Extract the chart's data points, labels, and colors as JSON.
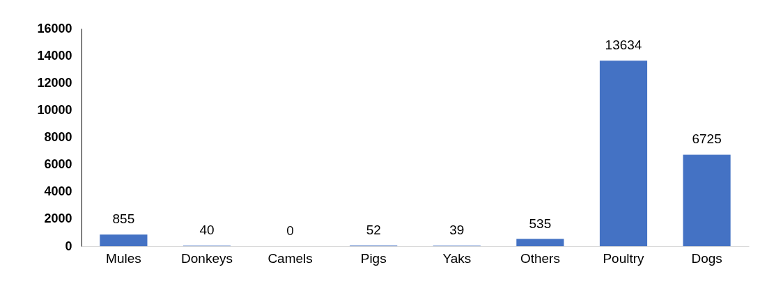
{
  "chart_data": {
    "type": "bar",
    "categories": [
      "Mules",
      "Donkeys",
      "Camels",
      "Pigs",
      "Yaks",
      "Others",
      "Poultry",
      "Dogs"
    ],
    "values": [
      855,
      40,
      0,
      52,
      39,
      535,
      13634,
      6725
    ],
    "color": "#4472c4",
    "ylim": [
      0,
      16000
    ],
    "yticks": [
      0,
      2000,
      4000,
      6000,
      8000,
      10000,
      12000,
      14000,
      16000
    ],
    "data_labels": true
  }
}
